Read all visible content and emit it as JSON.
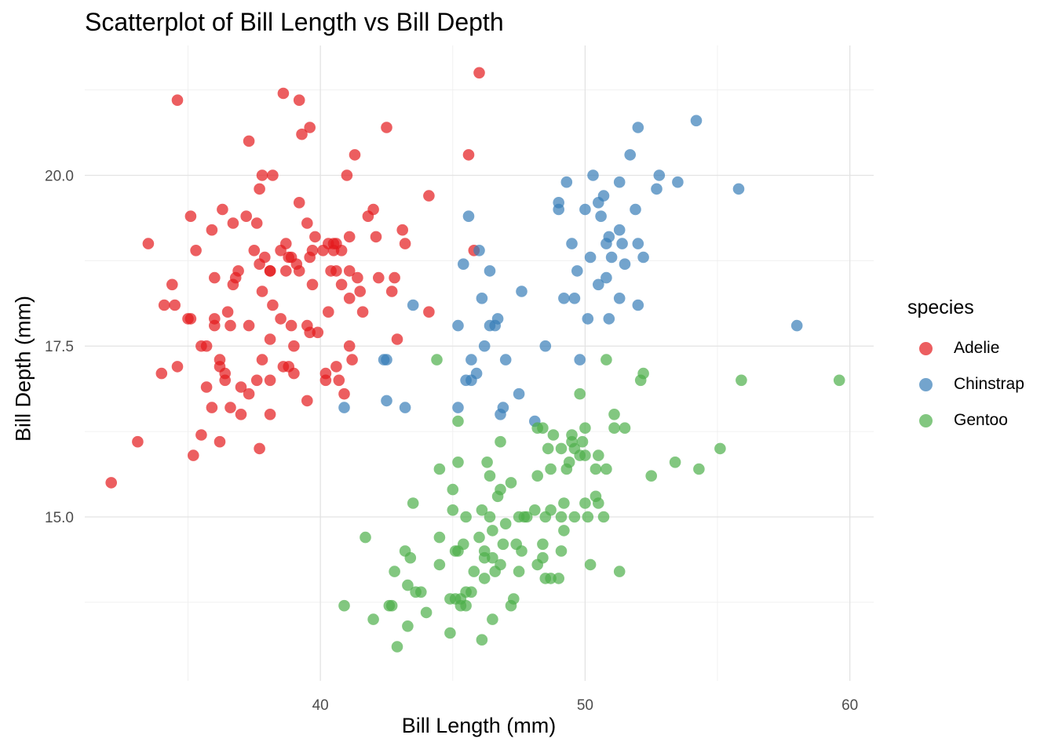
{
  "chart_data": {
    "type": "scatter",
    "title": "Scatterplot of Bill Length vs Bill Depth",
    "xlabel": "Bill Length (mm)",
    "ylabel": "Bill Depth (mm)",
    "xlim": [
      31.1,
      60.9
    ],
    "ylim": [
      12.6,
      21.9
    ],
    "x_ticks": [
      40,
      50,
      60
    ],
    "y_ticks": [
      15.0,
      17.5,
      20.0
    ],
    "x_tick_labels": [
      "40",
      "50",
      "60"
    ],
    "y_tick_labels": [
      "15.0",
      "17.5",
      "20.0"
    ],
    "grid": true,
    "legend": {
      "title": "species",
      "position": "right"
    },
    "series": [
      {
        "name": "Adelie",
        "color": "#E41A1C",
        "points": [
          [
            32.1,
            15.5
          ],
          [
            33.1,
            16.1
          ],
          [
            33.5,
            19.0
          ],
          [
            34.0,
            17.1
          ],
          [
            34.1,
            18.1
          ],
          [
            34.4,
            18.4
          ],
          [
            34.5,
            18.1
          ],
          [
            34.6,
            21.1
          ],
          [
            34.6,
            17.2
          ],
          [
            35.0,
            17.9
          ],
          [
            35.1,
            17.9
          ],
          [
            35.1,
            19.4
          ],
          [
            35.2,
            15.9
          ],
          [
            35.3,
            18.9
          ],
          [
            35.5,
            16.2
          ],
          [
            35.5,
            17.5
          ],
          [
            35.7,
            17.5
          ],
          [
            35.7,
            16.9
          ],
          [
            35.9,
            19.2
          ],
          [
            36.0,
            18.5
          ],
          [
            36.0,
            17.9
          ],
          [
            36.0,
            17.8
          ],
          [
            35.9,
            16.6
          ],
          [
            36.2,
            16.1
          ],
          [
            36.2,
            17.3
          ],
          [
            36.2,
            17.2
          ],
          [
            36.3,
            19.5
          ],
          [
            36.4,
            17.0
          ],
          [
            36.4,
            17.1
          ],
          [
            36.5,
            18.0
          ],
          [
            36.6,
            16.6
          ],
          [
            36.6,
            17.8
          ],
          [
            36.7,
            19.3
          ],
          [
            36.7,
            18.4
          ],
          [
            36.8,
            18.5
          ],
          [
            36.9,
            18.6
          ],
          [
            37.0,
            16.9
          ],
          [
            37.0,
            16.5
          ],
          [
            37.2,
            19.4
          ],
          [
            37.3,
            20.5
          ],
          [
            37.3,
            17.8
          ],
          [
            37.3,
            16.8
          ],
          [
            37.5,
            18.9
          ],
          [
            37.6,
            19.3
          ],
          [
            37.6,
            17.0
          ],
          [
            37.7,
            18.7
          ],
          [
            37.7,
            19.8
          ],
          [
            37.8,
            20.0
          ],
          [
            37.8,
            18.3
          ],
          [
            37.8,
            17.3
          ],
          [
            37.7,
            16.0
          ],
          [
            38.1,
            18.6
          ],
          [
            38.1,
            17.6
          ],
          [
            38.1,
            17.0
          ],
          [
            38.1,
            16.5
          ],
          [
            38.1,
            18.6
          ],
          [
            38.2,
            18.1
          ],
          [
            38.2,
            20.0
          ],
          [
            38.5,
            17.9
          ],
          [
            38.6,
            21.2
          ],
          [
            38.6,
            17.2
          ],
          [
            38.7,
            19.0
          ],
          [
            38.8,
            17.2
          ],
          [
            38.8,
            18.8
          ],
          [
            38.9,
            18.8
          ],
          [
            38.9,
            17.8
          ],
          [
            39.0,
            17.1
          ],
          [
            39.0,
            17.5
          ],
          [
            39.1,
            18.7
          ],
          [
            39.2,
            21.1
          ],
          [
            39.2,
            18.6
          ],
          [
            39.2,
            19.6
          ],
          [
            39.3,
            20.6
          ],
          [
            39.5,
            17.8
          ],
          [
            39.5,
            16.7
          ],
          [
            39.6,
            18.8
          ],
          [
            39.6,
            17.7
          ],
          [
            39.6,
            20.7
          ],
          [
            39.7,
            18.4
          ],
          [
            39.7,
            18.9
          ],
          [
            39.8,
            19.1
          ],
          [
            40.1,
            18.9
          ],
          [
            40.2,
            17.0
          ],
          [
            40.2,
            17.1
          ],
          [
            40.3,
            18.0
          ],
          [
            40.3,
            19.0
          ],
          [
            40.5,
            18.9
          ],
          [
            40.6,
            18.6
          ],
          [
            40.6,
            19.0
          ],
          [
            40.6,
            17.2
          ],
          [
            40.7,
            17.0
          ],
          [
            40.8,
            18.4
          ],
          [
            40.8,
            18.9
          ],
          [
            40.9,
            16.8
          ],
          [
            41.0,
            20.0
          ],
          [
            41.1,
            17.5
          ],
          [
            41.1,
            18.2
          ],
          [
            41.1,
            19.1
          ],
          [
            41.1,
            18.6
          ],
          [
            41.3,
            20.3
          ],
          [
            41.4,
            18.5
          ],
          [
            41.5,
            18.3
          ],
          [
            41.6,
            18.0
          ],
          [
            41.8,
            19.4
          ],
          [
            42.0,
            19.5
          ],
          [
            42.1,
            19.1
          ],
          [
            42.2,
            18.5
          ],
          [
            42.5,
            20.7
          ],
          [
            42.7,
            18.3
          ],
          [
            42.8,
            18.5
          ],
          [
            42.9,
            17.6
          ],
          [
            43.1,
            19.2
          ],
          [
            43.2,
            19.0
          ],
          [
            44.1,
            19.7
          ],
          [
            44.1,
            18.0
          ],
          [
            45.6,
            20.3
          ],
          [
            45.8,
            18.9
          ],
          [
            46.0,
            21.5
          ],
          [
            40.5,
            19.0
          ],
          [
            39.5,
            19.3
          ],
          [
            41.2,
            17.3
          ],
          [
            38.5,
            18.9
          ],
          [
            38.7,
            18.6
          ],
          [
            39.9,
            17.7
          ],
          [
            37.9,
            18.8
          ],
          [
            40.4,
            18.6
          ]
        ]
      },
      {
        "name": "Chinstrap",
        "color": "#377EB8",
        "points": [
          [
            40.9,
            16.6
          ],
          [
            42.4,
            17.3
          ],
          [
            42.5,
            16.7
          ],
          [
            42.5,
            17.3
          ],
          [
            43.2,
            16.6
          ],
          [
            43.5,
            18.1
          ],
          [
            45.2,
            16.6
          ],
          [
            45.2,
            17.8
          ],
          [
            45.4,
            18.7
          ],
          [
            45.5,
            17.0
          ],
          [
            45.6,
            19.4
          ],
          [
            45.7,
            17.3
          ],
          [
            45.7,
            17.0
          ],
          [
            45.9,
            17.1
          ],
          [
            46.0,
            18.9
          ],
          [
            46.1,
            18.2
          ],
          [
            46.2,
            17.5
          ],
          [
            46.4,
            17.8
          ],
          [
            46.4,
            18.6
          ],
          [
            46.6,
            17.8
          ],
          [
            46.7,
            17.9
          ],
          [
            46.8,
            16.5
          ],
          [
            46.9,
            16.6
          ],
          [
            47.0,
            17.3
          ],
          [
            47.5,
            16.8
          ],
          [
            47.6,
            18.3
          ],
          [
            48.1,
            16.4
          ],
          [
            48.5,
            17.5
          ],
          [
            49.0,
            19.5
          ],
          [
            49.0,
            19.6
          ],
          [
            49.2,
            18.2
          ],
          [
            49.3,
            19.9
          ],
          [
            49.5,
            19.0
          ],
          [
            49.6,
            18.2
          ],
          [
            49.7,
            18.6
          ],
          [
            49.8,
            17.3
          ],
          [
            50.0,
            19.5
          ],
          [
            50.1,
            17.9
          ],
          [
            50.2,
            18.8
          ],
          [
            50.3,
            20.0
          ],
          [
            50.5,
            18.4
          ],
          [
            50.5,
            19.6
          ],
          [
            50.6,
            19.4
          ],
          [
            50.7,
            19.7
          ],
          [
            50.8,
            18.5
          ],
          [
            50.8,
            19.0
          ],
          [
            50.9,
            17.9
          ],
          [
            50.9,
            19.1
          ],
          [
            51.0,
            18.8
          ],
          [
            51.3,
            19.2
          ],
          [
            51.3,
            18.2
          ],
          [
            51.3,
            19.9
          ],
          [
            51.4,
            19.0
          ],
          [
            51.5,
            18.7
          ],
          [
            51.7,
            20.3
          ],
          [
            51.9,
            19.5
          ],
          [
            52.0,
            18.1
          ],
          [
            52.0,
            19.0
          ],
          [
            52.0,
            20.7
          ],
          [
            52.2,
            18.8
          ],
          [
            52.7,
            19.8
          ],
          [
            52.8,
            20.0
          ],
          [
            53.5,
            19.9
          ],
          [
            54.2,
            20.8
          ],
          [
            55.8,
            19.8
          ],
          [
            58.0,
            17.8
          ]
        ]
      },
      {
        "name": "Gentoo",
        "color": "#4DAF4A",
        "points": [
          [
            40.9,
            13.7
          ],
          [
            41.7,
            14.7
          ],
          [
            42.0,
            13.5
          ],
          [
            42.6,
            13.7
          ],
          [
            42.7,
            13.7
          ],
          [
            42.8,
            14.2
          ],
          [
            42.9,
            13.1
          ],
          [
            43.2,
            14.5
          ],
          [
            43.3,
            13.4
          ],
          [
            43.3,
            14.0
          ],
          [
            43.4,
            14.4
          ],
          [
            43.5,
            15.2
          ],
          [
            43.6,
            13.9
          ],
          [
            43.8,
            13.9
          ],
          [
            44.0,
            13.6
          ],
          [
            44.4,
            17.3
          ],
          [
            44.5,
            14.3
          ],
          [
            44.5,
            14.7
          ],
          [
            44.5,
            15.7
          ],
          [
            44.9,
            13.8
          ],
          [
            44.9,
            13.3
          ],
          [
            45.0,
            15.4
          ],
          [
            45.1,
            14.5
          ],
          [
            45.1,
            13.8
          ],
          [
            45.2,
            14.5
          ],
          [
            45.2,
            15.8
          ],
          [
            45.2,
            16.4
          ],
          [
            45.3,
            13.8
          ],
          [
            45.3,
            13.7
          ],
          [
            45.4,
            14.6
          ],
          [
            45.5,
            13.7
          ],
          [
            45.5,
            15.0
          ],
          [
            45.5,
            13.9
          ],
          [
            45.7,
            13.9
          ],
          [
            45.8,
            14.2
          ],
          [
            46.1,
            13.2
          ],
          [
            46.1,
            15.1
          ],
          [
            46.2,
            14.4
          ],
          [
            46.2,
            14.1
          ],
          [
            46.2,
            14.5
          ],
          [
            46.3,
            15.8
          ],
          [
            46.4,
            15.0
          ],
          [
            46.4,
            15.6
          ],
          [
            46.5,
            13.5
          ],
          [
            46.5,
            14.4
          ],
          [
            46.5,
            14.8
          ],
          [
            46.6,
            14.2
          ],
          [
            46.7,
            15.3
          ],
          [
            46.8,
            14.3
          ],
          [
            46.8,
            15.4
          ],
          [
            46.8,
            16.1
          ],
          [
            46.9,
            14.6
          ],
          [
            47.2,
            13.7
          ],
          [
            47.2,
            15.5
          ],
          [
            47.3,
            13.8
          ],
          [
            47.4,
            14.6
          ],
          [
            47.5,
            14.2
          ],
          [
            47.5,
            15.0
          ],
          [
            47.6,
            14.5
          ],
          [
            47.7,
            15.0
          ],
          [
            47.8,
            15.0
          ],
          [
            48.1,
            15.1
          ],
          [
            48.2,
            14.3
          ],
          [
            48.2,
            15.6
          ],
          [
            48.4,
            14.4
          ],
          [
            48.4,
            14.6
          ],
          [
            48.4,
            16.3
          ],
          [
            48.5,
            14.1
          ],
          [
            48.5,
            15.0
          ],
          [
            48.6,
            16.0
          ],
          [
            48.7,
            14.1
          ],
          [
            48.7,
            15.1
          ],
          [
            48.7,
            15.7
          ],
          [
            48.8,
            16.2
          ],
          [
            49.0,
            14.1
          ],
          [
            49.1,
            14.5
          ],
          [
            49.1,
            15.0
          ],
          [
            49.1,
            16.0
          ],
          [
            49.2,
            14.8
          ],
          [
            49.3,
            15.7
          ],
          [
            49.4,
            15.8
          ],
          [
            49.5,
            16.1
          ],
          [
            49.5,
            16.2
          ],
          [
            49.6,
            15.0
          ],
          [
            49.6,
            16.0
          ],
          [
            49.8,
            15.9
          ],
          [
            49.8,
            16.8
          ],
          [
            49.9,
            16.1
          ],
          [
            50.0,
            15.2
          ],
          [
            50.0,
            15.9
          ],
          [
            50.1,
            15.0
          ],
          [
            50.2,
            14.3
          ],
          [
            50.4,
            15.3
          ],
          [
            50.4,
            15.7
          ],
          [
            50.5,
            15.2
          ],
          [
            50.5,
            15.9
          ],
          [
            50.7,
            15.0
          ],
          [
            50.8,
            15.7
          ],
          [
            50.8,
            17.3
          ],
          [
            51.1,
            16.3
          ],
          [
            51.1,
            16.5
          ],
          [
            51.3,
            14.2
          ],
          [
            51.5,
            16.3
          ],
          [
            52.1,
            17.0
          ],
          [
            52.2,
            17.1
          ],
          [
            52.5,
            15.6
          ],
          [
            53.4,
            15.8
          ],
          [
            54.3,
            15.7
          ],
          [
            55.1,
            16.0
          ],
          [
            55.9,
            17.0
          ],
          [
            59.6,
            17.0
          ],
          [
            50.0,
            16.3
          ],
          [
            49.2,
            15.2
          ],
          [
            48.2,
            16.3
          ],
          [
            46.0,
            14.7
          ],
          [
            47.0,
            14.9
          ],
          [
            45.0,
            15.1
          ]
        ]
      }
    ]
  }
}
